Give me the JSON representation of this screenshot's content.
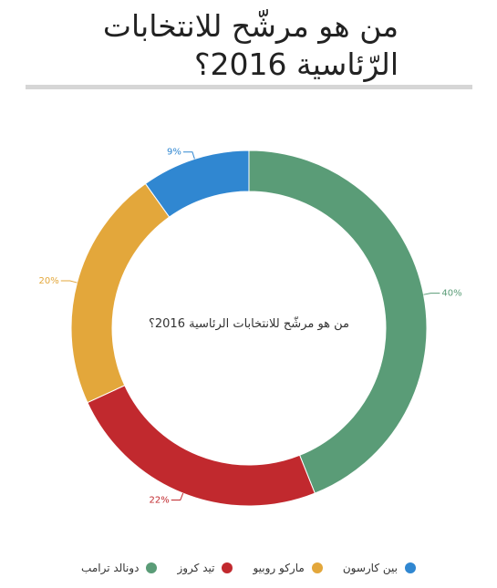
{
  "chart_data": {
    "type": "donut",
    "title": "من هو مرشّح للانتخابات الرّئاسية 2016؟",
    "center_text": "من هو مرشّح للانتخابات الرئاسية 2016؟",
    "categories": [
      "دونالد ترامب",
      "تيد كروز",
      "ماركو روبيو",
      "بين كارسون"
    ],
    "values": [
      40,
      22,
      20,
      9
    ],
    "value_labels": [
      "40%",
      "22%",
      "20%",
      "9%"
    ],
    "colors": [
      "#5a9c77",
      "#c1292e",
      "#e3a73b",
      "#3087d1"
    ]
  }
}
